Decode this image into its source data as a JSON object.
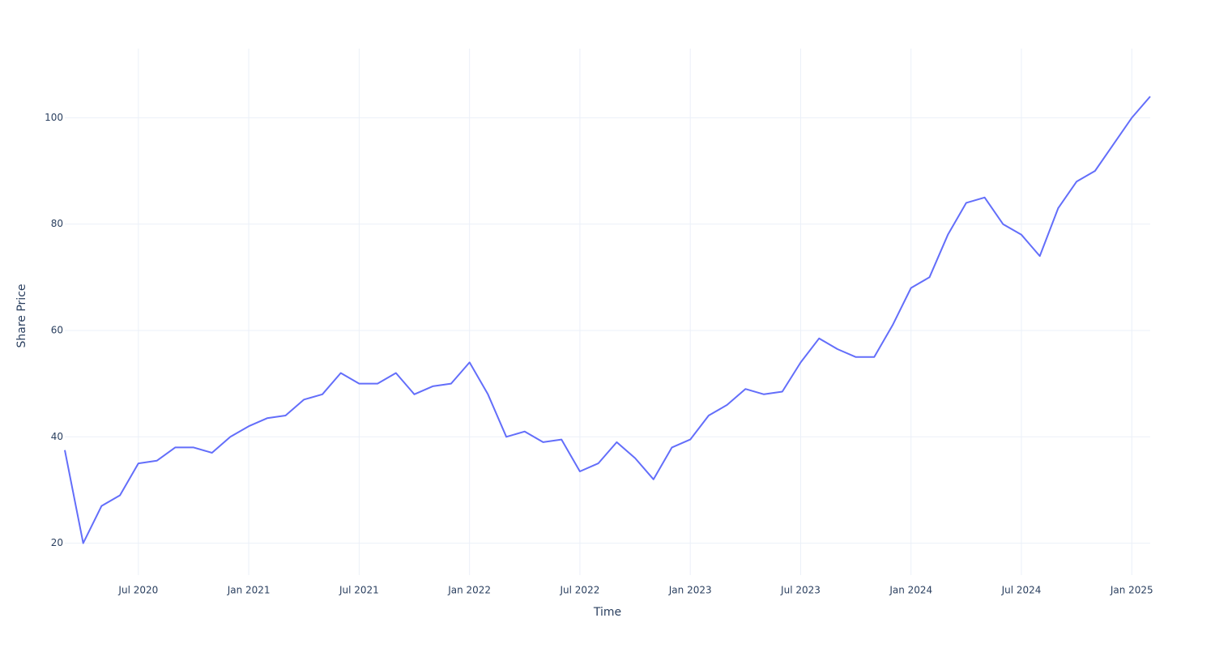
{
  "chart_data": {
    "type": "line",
    "x_label": "Time",
    "y_label": "Share Price",
    "x": [
      "2020-03",
      "2020-04",
      "2020-05",
      "2020-06",
      "2020-07",
      "2020-08",
      "2020-09",
      "2020-10",
      "2020-11",
      "2020-12",
      "2021-01",
      "2021-02",
      "2021-03",
      "2021-04",
      "2021-05",
      "2021-06",
      "2021-07",
      "2021-08",
      "2021-09",
      "2021-10",
      "2021-11",
      "2021-12",
      "2022-01",
      "2022-02",
      "2022-03",
      "2022-04",
      "2022-05",
      "2022-06",
      "2022-07",
      "2022-08",
      "2022-09",
      "2022-10",
      "2022-11",
      "2022-12",
      "2023-01",
      "2023-02",
      "2023-03",
      "2023-04",
      "2023-05",
      "2023-06",
      "2023-07",
      "2023-08",
      "2023-09",
      "2023-10",
      "2023-11",
      "2023-12",
      "2024-01",
      "2024-02",
      "2024-03",
      "2024-04",
      "2024-05",
      "2024-06",
      "2024-07",
      "2024-08",
      "2024-09",
      "2024-10",
      "2024-11",
      "2024-12",
      "2025-01",
      "2025-02"
    ],
    "values": [
      37.5,
      20,
      27,
      29,
      35,
      35.5,
      38,
      38,
      37,
      40,
      42,
      43.5,
      44,
      47,
      48,
      52,
      50,
      50,
      52,
      48,
      49.5,
      50,
      54,
      48,
      40,
      41,
      39,
      39.5,
      33.5,
      35,
      39,
      36,
      32,
      38,
      39.5,
      44,
      46,
      49,
      48,
      48.5,
      54,
      58.5,
      56.5,
      55,
      55,
      61,
      68,
      70,
      78,
      84,
      85,
      80,
      78,
      74,
      83,
      88,
      90,
      95,
      100,
      104
    ],
    "color": "#636efa",
    "xlim": [
      "2020-03",
      "2025-02"
    ],
    "xticks": [
      {
        "value": "2020-07",
        "label": "Jul 2020"
      },
      {
        "value": "2021-01",
        "label": "Jan 2021"
      },
      {
        "value": "2021-07",
        "label": "Jul 2021"
      },
      {
        "value": "2022-01",
        "label": "Jan 2022"
      },
      {
        "value": "2022-07",
        "label": "Jul 2022"
      },
      {
        "value": "2023-01",
        "label": "Jan 2023"
      },
      {
        "value": "2023-07",
        "label": "Jul 2023"
      },
      {
        "value": "2024-01",
        "label": "Jan 2024"
      },
      {
        "value": "2024-07",
        "label": "Jul 2024"
      },
      {
        "value": "2025-01",
        "label": "Jan 2025"
      }
    ],
    "ylim": [
      14,
      113
    ],
    "yticks": [
      20,
      40,
      60,
      80,
      100
    ],
    "grid": true
  }
}
